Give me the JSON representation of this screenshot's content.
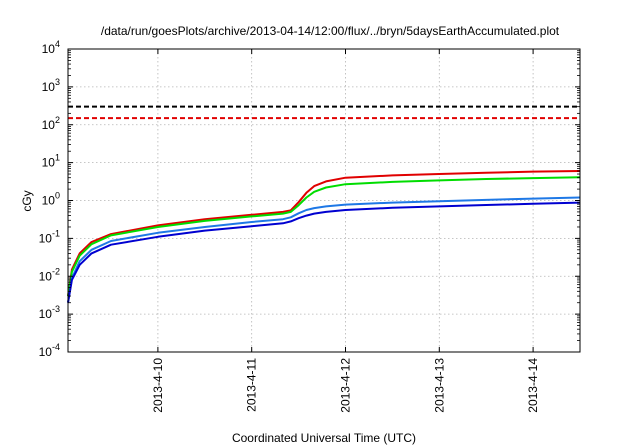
{
  "chart_data": {
    "type": "line",
    "title": "/data/run/goesPlots/archive/2013-04-14/12:00/flux/../bryn/5daysEarthAccumulated.plot",
    "xlabel": "Coordinated Universal Time (UTC)",
    "ylabel": "cGy",
    "y_scale": "log",
    "ylim": [
      0.0001,
      10000
    ],
    "y_ticks": [
      {
        "value": 0.0001,
        "base": "10",
        "exp": "-4"
      },
      {
        "value": 0.001,
        "base": "10",
        "exp": "-3"
      },
      {
        "value": 0.01,
        "base": "10",
        "exp": "-2"
      },
      {
        "value": 0.1,
        "base": "10",
        "exp": "-1"
      },
      {
        "value": 1,
        "base": "10",
        "exp": "0"
      },
      {
        "value": 10,
        "base": "10",
        "exp": "1"
      },
      {
        "value": 100,
        "base": "10",
        "exp": "2"
      },
      {
        "value": 1000,
        "base": "10",
        "exp": "3"
      },
      {
        "value": 10000,
        "base": "10",
        "exp": "4"
      }
    ],
    "xlim": [
      "2013-04-09 01:00",
      "2013-04-14 12:00"
    ],
    "x_ticks": [
      {
        "value": "2013-04-10 00:00",
        "label": "2013-4-10"
      },
      {
        "value": "2013-04-11 00:00",
        "label": "2013-4-11"
      },
      {
        "value": "2013-04-12 00:00",
        "label": "2013-4-12"
      },
      {
        "value": "2013-04-13 00:00",
        "label": "2013-4-13"
      },
      {
        "value": "2013-04-14 00:00",
        "label": "2013-4-14"
      }
    ],
    "grid": true,
    "thresholds": [
      {
        "value": 300,
        "color": "#000000",
        "style": "dashed"
      },
      {
        "value": 150,
        "color": "#e00000",
        "style": "dashed"
      }
    ],
    "series": [
      {
        "color": "#e00000",
        "x": [
          "2013-04-09 01:00",
          "2013-04-09 02:00",
          "2013-04-09 04:00",
          "2013-04-09 07:00",
          "2013-04-09 12:00",
          "2013-04-10 00:00",
          "2013-04-10 12:00",
          "2013-04-11 00:00",
          "2013-04-11 08:00",
          "2013-04-11 10:00",
          "2013-04-11 12:00",
          "2013-04-11 14:00",
          "2013-04-11 16:00",
          "2013-04-11 19:00",
          "2013-04-12 00:00",
          "2013-04-12 12:00",
          "2013-04-13 00:00",
          "2013-04-13 12:00",
          "2013-04-14 00:00",
          "2013-04-14 12:00"
        ],
        "y": [
          0.003,
          0.015,
          0.04,
          0.08,
          0.13,
          0.22,
          0.32,
          0.42,
          0.5,
          0.55,
          0.9,
          1.6,
          2.4,
          3.2,
          4.0,
          4.6,
          5.0,
          5.4,
          5.8,
          6.0
        ]
      },
      {
        "color": "#00dd00",
        "x": [
          "2013-04-09 01:00",
          "2013-04-09 02:00",
          "2013-04-09 04:00",
          "2013-04-09 07:00",
          "2013-04-09 12:00",
          "2013-04-10 00:00",
          "2013-04-10 12:00",
          "2013-04-11 00:00",
          "2013-04-11 08:00",
          "2013-04-11 10:00",
          "2013-04-11 12:00",
          "2013-04-11 14:00",
          "2013-04-11 16:00",
          "2013-04-11 19:00",
          "2013-04-12 00:00",
          "2013-04-12 12:00",
          "2013-04-13 00:00",
          "2013-04-13 12:00",
          "2013-04-14 00:00",
          "2013-04-14 12:00"
        ],
        "y": [
          0.003,
          0.013,
          0.035,
          0.07,
          0.12,
          0.2,
          0.29,
          0.38,
          0.45,
          0.5,
          0.75,
          1.2,
          1.7,
          2.2,
          2.7,
          3.1,
          3.4,
          3.7,
          3.9,
          4.1
        ]
      },
      {
        "color": "#1e78e6",
        "x": [
          "2013-04-09 01:00",
          "2013-04-09 02:00",
          "2013-04-09 04:00",
          "2013-04-09 07:00",
          "2013-04-09 12:00",
          "2013-04-10 00:00",
          "2013-04-10 12:00",
          "2013-04-11 00:00",
          "2013-04-11 08:00",
          "2013-04-11 10:00",
          "2013-04-11 12:00",
          "2013-04-11 14:00",
          "2013-04-11 16:00",
          "2013-04-11 19:00",
          "2013-04-12 00:00",
          "2013-04-12 12:00",
          "2013-04-13 00:00",
          "2013-04-13 12:00",
          "2013-04-14 00:00",
          "2013-04-14 12:00"
        ],
        "y": [
          0.002,
          0.009,
          0.025,
          0.05,
          0.085,
          0.14,
          0.2,
          0.27,
          0.32,
          0.36,
          0.46,
          0.56,
          0.63,
          0.7,
          0.78,
          0.88,
          0.96,
          1.04,
          1.12,
          1.2
        ]
      },
      {
        "color": "#0000d0",
        "x": [
          "2013-04-09 01:00",
          "2013-04-09 02:00",
          "2013-04-09 04:00",
          "2013-04-09 07:00",
          "2013-04-09 12:00",
          "2013-04-10 00:00",
          "2013-04-10 12:00",
          "2013-04-11 00:00",
          "2013-04-11 08:00",
          "2013-04-11 10:00",
          "2013-04-11 12:00",
          "2013-04-11 14:00",
          "2013-04-11 16:00",
          "2013-04-11 19:00",
          "2013-04-12 00:00",
          "2013-04-12 12:00",
          "2013-04-13 00:00",
          "2013-04-13 12:00",
          "2013-04-14 00:00",
          "2013-04-14 12:00"
        ],
        "y": [
          0.002,
          0.008,
          0.02,
          0.04,
          0.068,
          0.11,
          0.16,
          0.21,
          0.25,
          0.28,
          0.34,
          0.4,
          0.45,
          0.5,
          0.56,
          0.64,
          0.7,
          0.76,
          0.82,
          0.88
        ]
      }
    ]
  }
}
